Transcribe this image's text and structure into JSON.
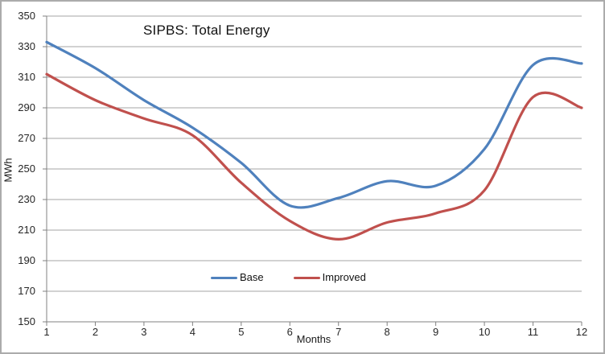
{
  "chart": {
    "title": "SIPBS: Total Energy",
    "y_axis_title": "MWh",
    "x_axis_title": "Months",
    "colors": {
      "base_series": "#4F81BD",
      "improved_series": "#C0504D",
      "gridline": "#a6a6a6",
      "axis_line": "#808080",
      "tick_text": "#262626",
      "border": "#ababab"
    }
  },
  "chart_data": {
    "type": "line",
    "title": "SIPBS: Total Energy",
    "xlabel": "Months",
    "ylabel": "MWh",
    "x": [
      1,
      2,
      3,
      4,
      5,
      6,
      7,
      8,
      9,
      10,
      11,
      12
    ],
    "series": [
      {
        "name": "Base",
        "color": "#4F81BD",
        "values": [
          333,
          316,
          295,
          277,
          254,
          226,
          231,
          242,
          239,
          263,
          318,
          319
        ]
      },
      {
        "name": "Improved",
        "color": "#C0504D",
        "values": [
          312,
          295,
          283,
          272,
          241,
          216,
          204,
          215,
          221,
          236,
          297,
          290
        ]
      }
    ],
    "ylim": [
      150,
      350
    ],
    "ytick_step": 20,
    "xticks": [
      "1",
      "2",
      "3",
      "4",
      "5",
      "6",
      "7",
      "8",
      "9",
      "10",
      "11",
      "12"
    ],
    "yticks": [
      "350",
      "330",
      "310",
      "290",
      "270",
      "250",
      "230",
      "210",
      "190",
      "170",
      "150"
    ],
    "grid": true,
    "smooth": true,
    "legend_position": "bottom-center-inside"
  },
  "legend": {
    "items": [
      {
        "label": "Base",
        "color": "#4F81BD"
      },
      {
        "label": "Improved",
        "color": "#C0504D"
      }
    ]
  }
}
